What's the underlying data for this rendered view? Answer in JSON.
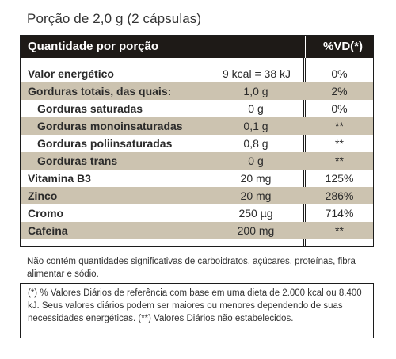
{
  "serving": "Porção de 2,0 g (2 cápsulas)",
  "header": {
    "label": "Quantidade por porção",
    "vd": "%VD(*)"
  },
  "rows": [
    {
      "name": "Valor energético",
      "amount": "9 kcal = 38 kJ",
      "vd": "0%"
    },
    {
      "name": "Gorduras totais, das quais:",
      "amount": "1,0 g",
      "vd": "2%"
    },
    {
      "name": "Gorduras saturadas",
      "amount": "0 g",
      "vd": "0%"
    },
    {
      "name": "Gorduras monoinsaturadas",
      "amount": "0,1 g",
      "vd": "**"
    },
    {
      "name": "Gorduras poliinsaturadas",
      "amount": "0,8 g",
      "vd": "**"
    },
    {
      "name": "Gorduras trans",
      "amount": "0 g",
      "vd": "**"
    },
    {
      "name": "Vitamina B3",
      "amount": "20 mg",
      "vd": "125%"
    },
    {
      "name": "Zinco",
      "amount": "20 mg",
      "vd": "286%"
    },
    {
      "name": "Cromo",
      "amount": "250 µg",
      "vd": "714%"
    },
    {
      "name": "Cafeína",
      "amount": "200 mg",
      "vd": "**"
    }
  ],
  "footnote": "Não contém quantidades significativas de carboidratos, açúcares, proteínas, fibra alimentar e sódio.",
  "note": "(*) % Valores Diários de referência com base em uma dieta de 2.000 kcal ou 8.400 kJ. Seus valores diários podem ser maiores ou menores dependendo de suas necessidades energéticas. (**) Valores Diários não estabelecidos."
}
